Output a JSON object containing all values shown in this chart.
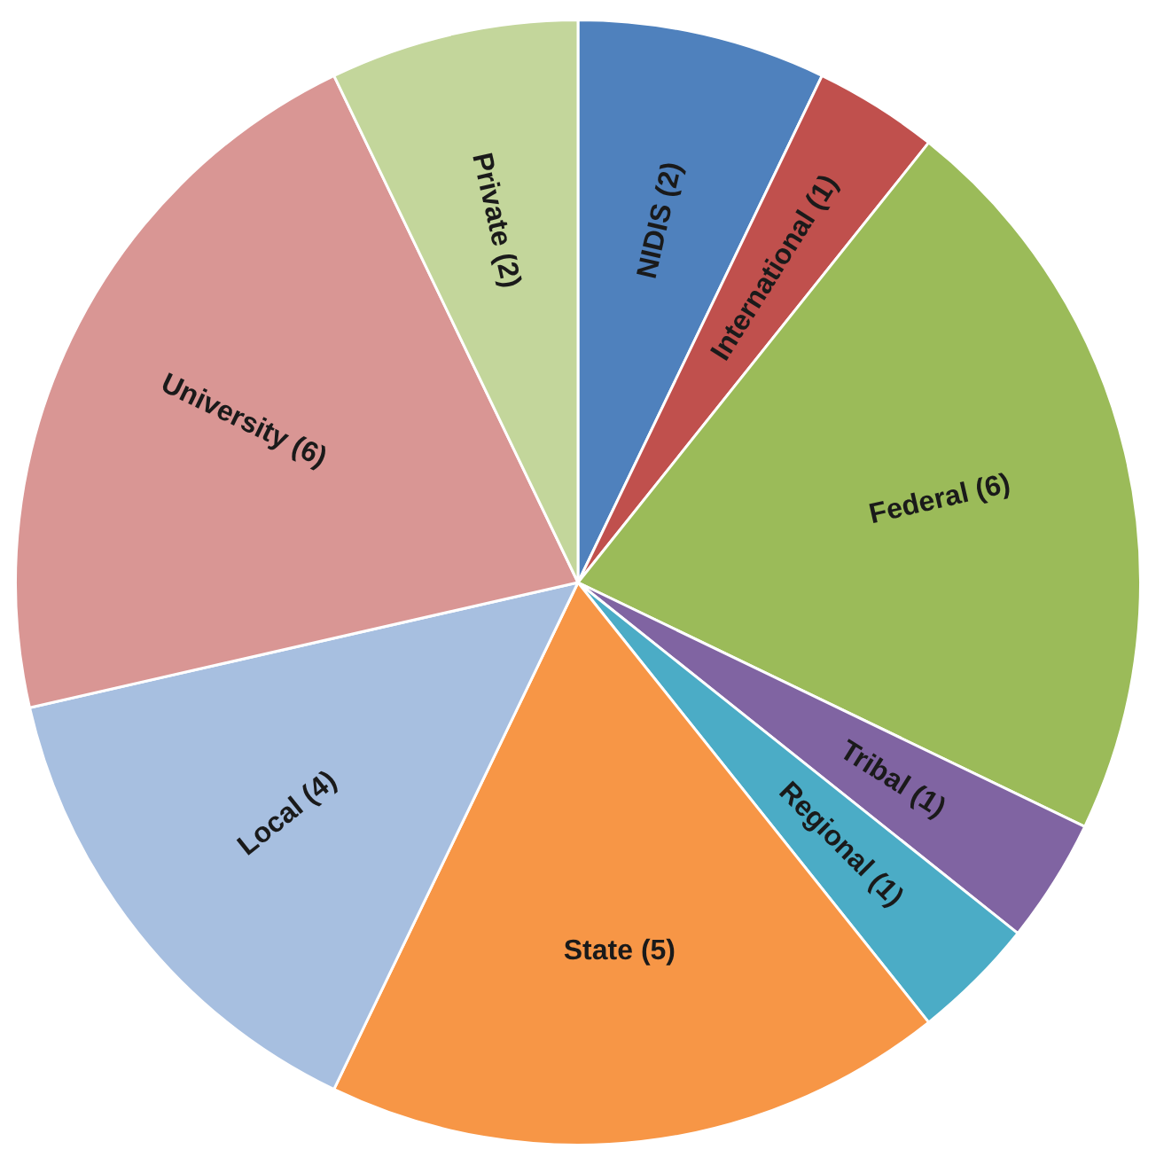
{
  "chart_data": {
    "type": "pie",
    "categories": [
      "NIDIS (2)",
      "International (1)",
      "Federal (6)",
      "Tribal (1)",
      "Regional (1)",
      "State (5)",
      "Local (4)",
      "University (6)",
      "Private (2)"
    ],
    "values": [
      2,
      1,
      6,
      1,
      1,
      5,
      4,
      6,
      2
    ],
    "colors": [
      "#4f81bd",
      "#c0504d",
      "#9bbb59",
      "#8064a2",
      "#4bacc6",
      "#f79646",
      "#a7bfe0",
      "#d99694",
      "#c3d69b"
    ]
  }
}
